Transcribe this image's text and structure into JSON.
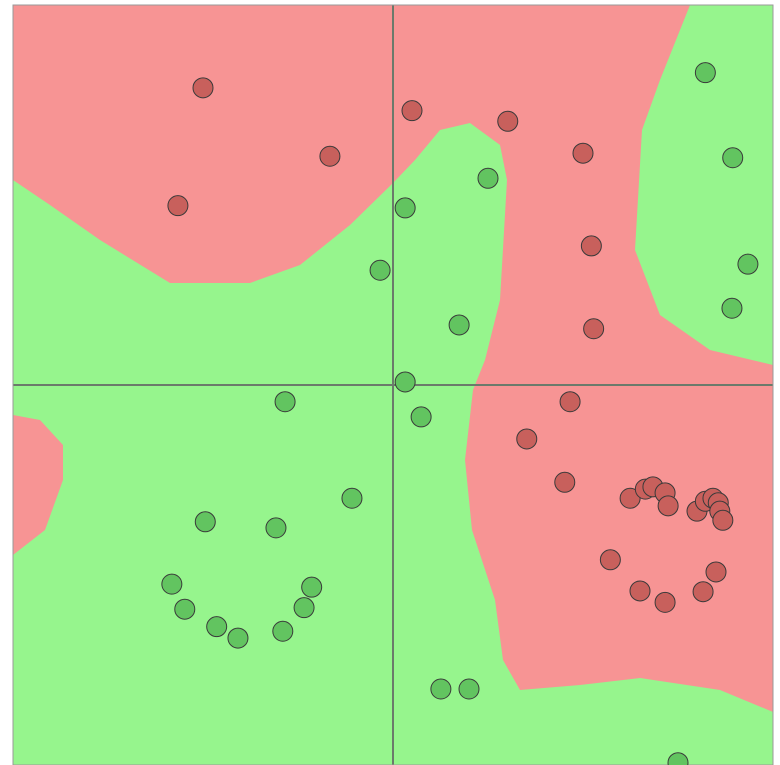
{
  "chart_data": {
    "type": "scatter",
    "xlim": [
      -5,
      5
    ],
    "ylim": [
      -5,
      5
    ],
    "series": [
      {
        "color": "#c8605c",
        "x": [
          -2.5,
          -0.83,
          -2.83,
          0.25,
          1.51,
          2.5,
          2.61,
          2.64,
          2.33,
          1.76,
          2.26,
          3.12,
          3.32,
          3.42,
          3.58,
          3.62,
          4.0,
          4.11,
          4.21,
          4.28,
          4.3,
          4.34,
          2.86,
          3.25,
          3.58,
          4.08,
          4.25
        ],
        "values": [
          3.91,
          3.01,
          2.36,
          3.61,
          3.47,
          3.05,
          1.83,
          0.74,
          -0.22,
          -0.71,
          -1.28,
          -1.49,
          -1.37,
          -1.34,
          -1.42,
          -1.59,
          -1.66,
          -1.53,
          -1.49,
          -1.55,
          -1.66,
          -1.78,
          -2.3,
          -2.71,
          -2.86,
          -2.72,
          -2.46
        ]
      },
      {
        "color": "#62c460",
        "x": [
          4.11,
          4.47,
          4.67,
          4.46,
          1.25,
          0.16,
          -0.17,
          0.87,
          0.16,
          0.37,
          -1.42,
          -0.54,
          -2.47,
          -1.54,
          -2.91,
          -2.74,
          -2.32,
          -2.04,
          -1.45,
          -1.17,
          -1.07,
          0.63,
          1.0,
          3.75
        ],
        "values": [
          4.11,
          2.99,
          1.59,
          1.01,
          2.72,
          2.33,
          1.51,
          0.79,
          0.04,
          -0.42,
          -0.22,
          -1.49,
          -1.8,
          -1.88,
          -2.62,
          -2.95,
          -3.18,
          -3.33,
          -3.24,
          -2.93,
          -2.66,
          -4.0,
          -4.0,
          -4.97
        ]
      }
    ]
  }
}
